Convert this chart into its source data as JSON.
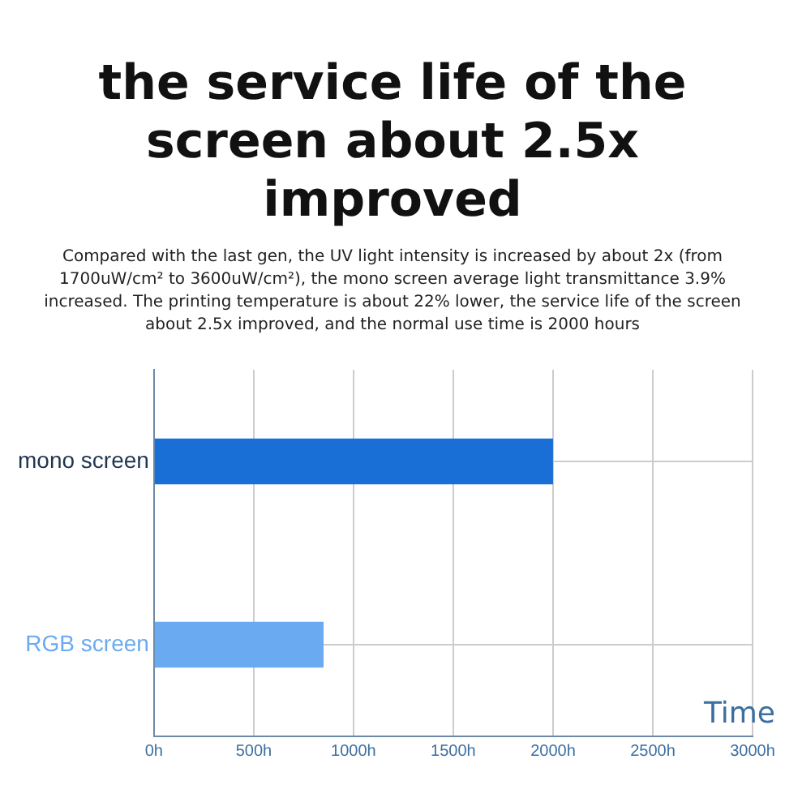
{
  "chart_data": {
    "type": "bar",
    "orientation": "horizontal",
    "title": "the service life of the screen about 2.5x improved",
    "subtitle": "Compared with the last gen, the UV light intensity is increased by about 2x (from 1700uW/cm² to 3600uW/cm²), the mono screen average light transmittance 3.9% increased. The printing temperature is about 22% lower, the service life of the screen about 2.5x improved, and the normal use time is 2000 hours",
    "categories": [
      "mono screen",
      "RGB screen"
    ],
    "values": [
      2000,
      850
    ],
    "colors": [
      "#1a6fd6",
      "#6aaaf0"
    ],
    "xlabel": "Time",
    "xlim": [
      0,
      3000
    ],
    "xticks": [
      {
        "value": 0,
        "label": "0h"
      },
      {
        "value": 500,
        "label": "500h"
      },
      {
        "value": 1000,
        "label": "1000h"
      },
      {
        "value": 1500,
        "label": "1500h"
      },
      {
        "value": 2000,
        "label": "2000h"
      },
      {
        "value": 2500,
        "label": "2500h"
      },
      {
        "value": 3000,
        "label": "3000h"
      }
    ],
    "grid": true,
    "legend": false
  }
}
